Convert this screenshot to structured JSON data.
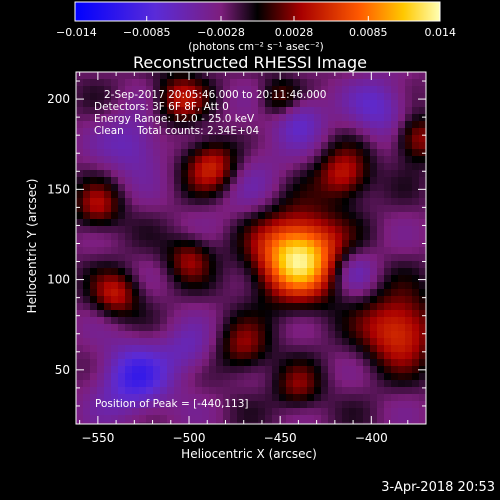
{
  "chart_data": {
    "type": "heatmap",
    "title": "Reconstructed RHESSI Image",
    "xlabel": "Heliocentric X (arcsec)",
    "ylabel": "Heliocentric Y (arcsec)",
    "xlim": [
      -562,
      -370
    ],
    "ylim": [
      20,
      215
    ],
    "xticks": [
      -550,
      -500,
      -450,
      -400
    ],
    "yticks": [
      50,
      100,
      150,
      200
    ],
    "colorbar": {
      "range": [
        -0.014,
        0.014
      ],
      "ticks": [
        "-0.014",
        "-0.0085",
        "-0.0028",
        "0.0028",
        "0.0085",
        "0.014"
      ],
      "unit_label": "(photons cm⁻² s⁻¹ asec⁻²)"
    },
    "info_lines": [
      "2-Sep-2017 20:05:46.000 to 20:11:46.000",
      "Detectors: 3F 6F 8F, Att 0",
      "Energy Range: 12.0 - 25.0 keV",
      "Clean    Total counts: 2.34E+04"
    ],
    "peak_text": "Position of Peak = [-440,113]",
    "sources": [
      {
        "x": -440,
        "y": 113,
        "sigma": 16,
        "amp": 1.0
      },
      {
        "x": -487,
        "y": 163,
        "sigma": 11,
        "amp": 0.6
      },
      {
        "x": -415,
        "y": 158,
        "sigma": 10,
        "amp": 0.45
      },
      {
        "x": -375,
        "y": 178,
        "sigma": 9,
        "amp": 0.4
      },
      {
        "x": -385,
        "y": 72,
        "sigma": 14,
        "amp": 0.55
      },
      {
        "x": -540,
        "y": 92,
        "sigma": 9,
        "amp": 0.4
      },
      {
        "x": -550,
        "y": 140,
        "sigma": 9,
        "amp": 0.35
      },
      {
        "x": -505,
        "y": 200,
        "sigma": 10,
        "amp": 0.38
      },
      {
        "x": -470,
        "y": 62,
        "sigma": 10,
        "amp": 0.32
      },
      {
        "x": -500,
        "y": 112,
        "sigma": 9,
        "amp": 0.32
      },
      {
        "x": -450,
        "y": 200,
        "sigma": 8,
        "amp": 0.3
      },
      {
        "x": -440,
        "y": 40,
        "sigma": 9,
        "amp": 0.28
      },
      {
        "x": -530,
        "y": 45,
        "sigma": 14,
        "amp": -0.45
      },
      {
        "x": -475,
        "y": 160,
        "sigma": 18,
        "amp": -0.2
      },
      {
        "x": -440,
        "y": 190,
        "sigma": 10,
        "amp": -0.3
      },
      {
        "x": -395,
        "y": 195,
        "sigma": 12,
        "amp": -0.3
      },
      {
        "x": -530,
        "y": 175,
        "sigma": 12,
        "amp": -0.28
      },
      {
        "x": -410,
        "y": 105,
        "sigma": 9,
        "amp": -0.25
      },
      {
        "x": -500,
        "y": 60,
        "sigma": 10,
        "amp": -0.22
      }
    ]
  },
  "footer": {
    "date": "3-Apr-2018 20:53"
  }
}
